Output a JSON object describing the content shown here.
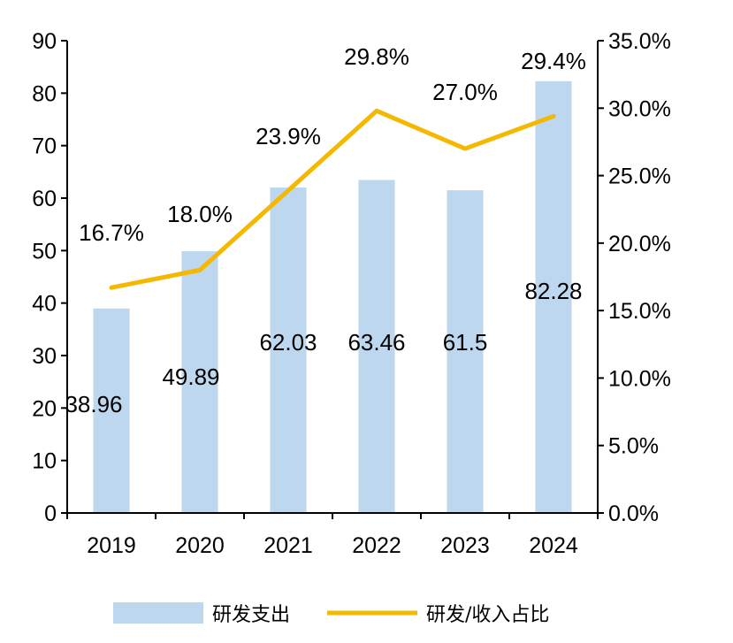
{
  "chart_data": {
    "type": "bar",
    "categories": [
      "2019",
      "2020",
      "2021",
      "2022",
      "2023",
      "2024"
    ],
    "series": [
      {
        "name": "研发支出",
        "type": "bar",
        "axis": "left",
        "values": [
          38.96,
          49.89,
          62.03,
          63.46,
          61.5,
          82.28
        ],
        "labels": [
          "38.96",
          "49.89",
          "62.03",
          "63.46",
          "61.5",
          "82.28"
        ],
        "color": "#bdd7ee"
      },
      {
        "name": "研发/收入占比",
        "type": "line",
        "axis": "right",
        "values": [
          16.7,
          18.0,
          23.9,
          29.8,
          27.0,
          29.4
        ],
        "labels": [
          "16.7%",
          "18.0%",
          "23.9%",
          "29.8%",
          "27.0%",
          "29.4%"
        ],
        "color": "#f5b800"
      }
    ],
    "y_left": {
      "lim": [
        0,
        90
      ],
      "ticks": [
        "0",
        "10",
        "20",
        "30",
        "40",
        "50",
        "60",
        "70",
        "80",
        "90"
      ]
    },
    "y_right": {
      "lim": [
        0,
        35
      ],
      "ticks": [
        "0.0%",
        "5.0%",
        "10.0%",
        "15.0%",
        "20.0%",
        "25.0%",
        "30.0%",
        "35.0%"
      ]
    },
    "grid": false,
    "legend_position": "bottom"
  }
}
